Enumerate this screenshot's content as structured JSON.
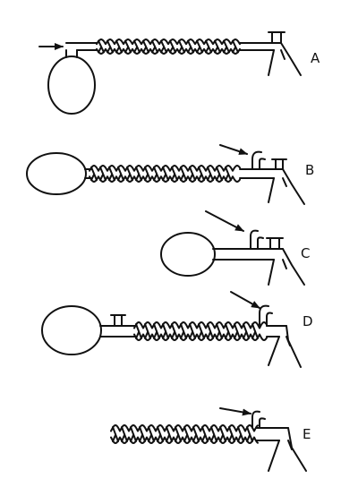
{
  "figure": {
    "panels": [
      {
        "id": "a",
        "label": "A"
      },
      {
        "id": "b",
        "label": "B"
      },
      {
        "id": "c",
        "label": "C"
      },
      {
        "id": "d",
        "label": "D"
      },
      {
        "id": "e",
        "label": "E"
      }
    ]
  }
}
